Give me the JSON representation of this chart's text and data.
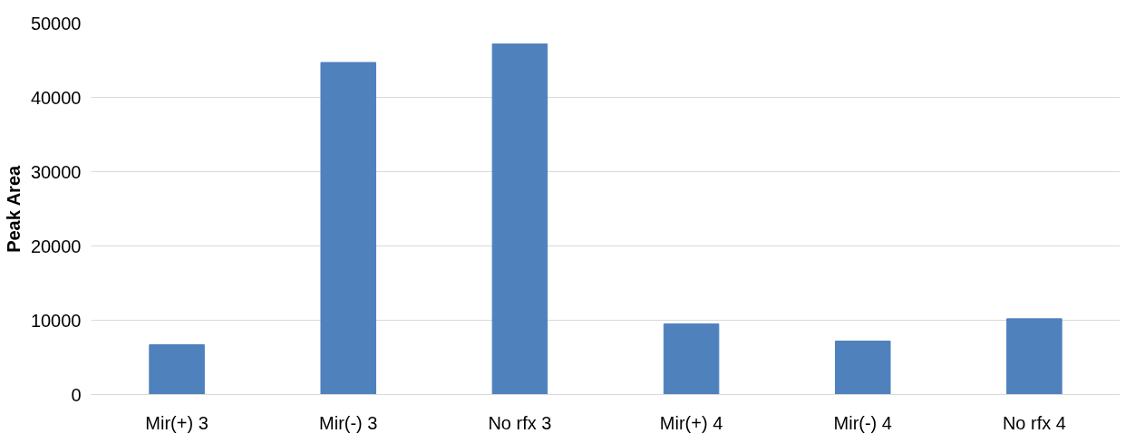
{
  "chart_data": {
    "type": "bar",
    "ylabel": "Peak Area",
    "categories": [
      "Mir(+) 3",
      "Mir(-) 3",
      "No rfx 3",
      "Mir(+) 4",
      "Mir(-) 4",
      "No rfx 4"
    ],
    "values": [
      6700,
      44700,
      47200,
      9500,
      7200,
      10200
    ],
    "color": "#4f81bd",
    "ylim": [
      0,
      50000
    ],
    "yticks": [
      0,
      10000,
      20000,
      30000,
      40000,
      50000
    ],
    "grid": "y"
  }
}
